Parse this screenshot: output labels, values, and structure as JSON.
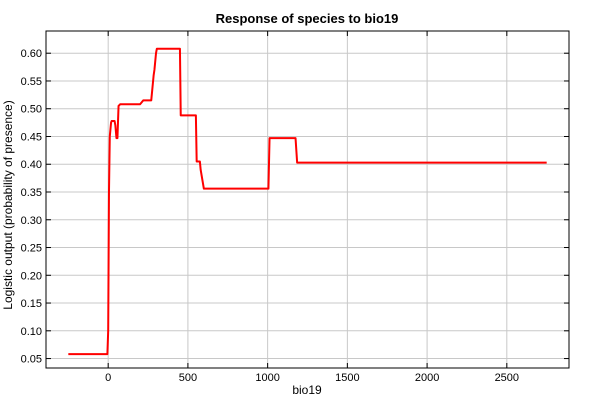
{
  "chart_data": {
    "type": "line",
    "title": "Response of species to bio19",
    "xlabel": "bio19",
    "ylabel": "Logistic output (probability of presence)",
    "xlim": [
      -390,
      2890
    ],
    "ylim": [
      0.033,
      0.64
    ],
    "xticks": [
      0,
      500,
      1000,
      1500,
      2000,
      2500
    ],
    "yticks": [
      0.05,
      0.1,
      0.15,
      0.2,
      0.25,
      0.3,
      0.35,
      0.4,
      0.45,
      0.5,
      0.55,
      0.6
    ],
    "xtick_labels": [
      "0",
      "500",
      "1000",
      "1500",
      "2000",
      "2500"
    ],
    "ytick_labels": [
      "0.05",
      "0.10",
      "0.15",
      "0.20",
      "0.25",
      "0.30",
      "0.35",
      "0.40",
      "0.45",
      "0.50",
      "0.55",
      "0.60"
    ],
    "grid": true,
    "line_color": "#ff0000",
    "series": [
      {
        "x": [
          -250,
          -5,
          0,
          5,
          10,
          18,
          22,
          40,
          45,
          52,
          58,
          65,
          75,
          100,
          200,
          220,
          270,
          285,
          290,
          300,
          305,
          450,
          455,
          550,
          555,
          575,
          580,
          600,
          1005,
          1012,
          1175,
          1185,
          2750
        ],
        "y": [
          0.058,
          0.058,
          0.1,
          0.35,
          0.45,
          0.475,
          0.478,
          0.478,
          0.47,
          0.447,
          0.447,
          0.505,
          0.508,
          0.508,
          0.508,
          0.515,
          0.515,
          0.56,
          0.57,
          0.6,
          0.608,
          0.608,
          0.488,
          0.488,
          0.405,
          0.405,
          0.39,
          0.356,
          0.356,
          0.447,
          0.447,
          0.403,
          0.403
        ]
      }
    ]
  }
}
